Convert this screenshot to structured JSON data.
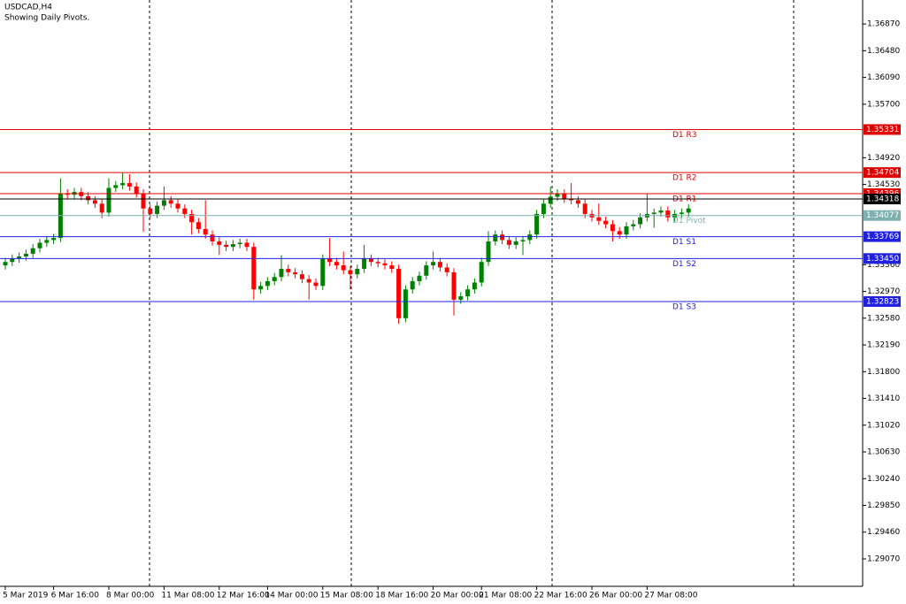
{
  "chart_data": {
    "type": "candlestick",
    "title": "USDCAD,H4",
    "subtitle": "Showing Daily Pivots.",
    "categories": [
      "5 Mar 2019",
      null,
      null,
      null,
      null,
      null,
      null,
      "6 Mar 16:00",
      null,
      null,
      null,
      null,
      null,
      null,
      null,
      "8 Mar 00:00",
      null,
      null,
      null,
      null,
      null,
      null,
      null,
      "11 Mar 08:00",
      null,
      null,
      null,
      null,
      null,
      null,
      null,
      "12 Mar 16:00",
      null,
      null,
      null,
      null,
      null,
      null,
      "14 Mar 00:00",
      null,
      null,
      null,
      null,
      null,
      null,
      null,
      "15 Mar 08:00",
      null,
      null,
      null,
      null,
      null,
      null,
      null,
      "18 Mar 16:00",
      null,
      null,
      null,
      null,
      null,
      null,
      null,
      "20 Mar 00:00",
      null,
      null,
      null,
      null,
      null,
      null,
      "21 Mar 08:00",
      null,
      null,
      null,
      null,
      null,
      null,
      null,
      "22 Mar 16:00",
      null,
      null,
      null,
      null,
      null,
      null,
      null,
      "26 Mar 00:00",
      null,
      null,
      null,
      null,
      null,
      null,
      null,
      "27 Mar 08:00",
      null,
      null,
      null,
      null,
      null,
      null
    ],
    "open": [
      1.3335,
      1.334,
      1.3345,
      1.3348,
      1.3352,
      1.336,
      1.3368,
      1.3372,
      1.3375,
      1.344,
      1.3438,
      1.3442,
      1.3436,
      1.343,
      1.3425,
      1.3412,
      1.3448,
      1.3452,
      1.3455,
      1.345,
      1.344,
      1.3418,
      1.341,
      1.3422,
      1.343,
      1.3425,
      1.3418,
      1.341,
      1.3398,
      1.3388,
      1.338,
      1.337,
      1.3365,
      1.3362,
      1.3366,
      1.3368,
      1.3362,
      1.33,
      1.3305,
      1.3312,
      1.3318,
      1.333,
      1.3325,
      1.3322,
      1.3315,
      1.331,
      1.3305,
      1.3345,
      1.334,
      1.3335,
      1.3328,
      1.3322,
      1.333,
      1.3345,
      1.334,
      1.3338,
      1.3335,
      1.333,
      1.3258,
      1.33,
      1.3312,
      1.332,
      1.3335,
      1.334,
      1.3332,
      1.3325,
      1.3285,
      1.329,
      1.33,
      1.331,
      1.334,
      1.337,
      1.338,
      1.3372,
      1.3365,
      1.337,
      1.3372,
      1.338,
      1.341,
      1.3425,
      1.3435,
      1.344,
      1.3432,
      1.343,
      1.3425,
      1.341,
      1.3405,
      1.34,
      1.3395,
      1.3385,
      1.338,
      1.3392,
      1.3395,
      1.3405,
      1.341,
      1.3412,
      1.3415,
      1.3405,
      1.341,
      1.3412
    ],
    "high": [
      1.3346,
      1.3351,
      1.3354,
      1.3358,
      1.3366,
      1.3374,
      1.3378,
      1.3381,
      1.3462,
      1.3446,
      1.3448,
      1.3448,
      1.3442,
      1.3436,
      1.3431,
      1.3462,
      1.3458,
      1.347,
      1.3468,
      1.3456,
      1.3446,
      1.3424,
      1.3428,
      1.345,
      1.3436,
      1.3431,
      1.3424,
      1.3416,
      1.3404,
      1.343,
      1.3386,
      1.3376,
      1.3371,
      1.3372,
      1.3374,
      1.3374,
      1.3368,
      1.3311,
      1.3318,
      1.3324,
      1.335,
      1.3336,
      1.3331,
      1.3328,
      1.3321,
      1.3316,
      1.3351,
      1.3375,
      1.3346,
      1.3355,
      1.3334,
      1.3336,
      1.3365,
      1.3351,
      1.3346,
      1.3344,
      1.3341,
      1.3336,
      1.3306,
      1.3318,
      1.3326,
      1.3341,
      1.3355,
      1.3346,
      1.3338,
      1.3331,
      1.3296,
      1.3306,
      1.3316,
      1.3346,
      1.3385,
      1.3386,
      1.3386,
      1.3378,
      1.3376,
      1.3378,
      1.3386,
      1.3416,
      1.3431,
      1.345,
      1.3446,
      1.3446,
      1.3455,
      1.3436,
      1.3431,
      1.3416,
      1.3425,
      1.3406,
      1.3401,
      1.3391,
      1.3398,
      1.3401,
      1.3411,
      1.344,
      1.3418,
      1.3421,
      1.3421,
      1.3416,
      1.3418,
      1.3424
    ],
    "low": [
      1.3329,
      1.3334,
      1.3339,
      1.3342,
      1.3346,
      1.3354,
      1.3362,
      1.3366,
      1.3369,
      1.3432,
      1.3432,
      1.343,
      1.3424,
      1.3419,
      1.3404,
      1.3406,
      1.3442,
      1.3446,
      1.3444,
      1.3434,
      1.3384,
      1.3404,
      1.3404,
      1.3416,
      1.3419,
      1.3412,
      1.3404,
      1.338,
      1.3382,
      1.3374,
      1.3364,
      1.335,
      1.3356,
      1.3356,
      1.336,
      1.3356,
      1.3285,
      1.3294,
      1.3299,
      1.3306,
      1.3312,
      1.3319,
      1.3316,
      1.3309,
      1.3285,
      1.3299,
      1.3299,
      1.3334,
      1.3329,
      1.3322,
      1.33,
      1.3316,
      1.3324,
      1.3334,
      1.3332,
      1.3329,
      1.3324,
      1.325,
      1.3252,
      1.3294,
      1.3306,
      1.3314,
      1.3329,
      1.3326,
      1.3319,
      1.3262,
      1.3279,
      1.3284,
      1.3294,
      1.3304,
      1.3334,
      1.3364,
      1.3366,
      1.3359,
      1.3359,
      1.335,
      1.3366,
      1.3374,
      1.3404,
      1.3419,
      1.3429,
      1.3426,
      1.3424,
      1.3419,
      1.3404,
      1.3399,
      1.3394,
      1.3389,
      1.337,
      1.3374,
      1.3374,
      1.3386,
      1.3389,
      1.3399,
      1.339,
      1.3406,
      1.3399,
      1.3399,
      1.3404,
      1.3406
    ],
    "close": [
      1.334,
      1.3345,
      1.3348,
      1.3352,
      1.336,
      1.3368,
      1.3372,
      1.3375,
      1.344,
      1.3438,
      1.3442,
      1.3436,
      1.343,
      1.3425,
      1.3412,
      1.3448,
      1.3452,
      1.3455,
      1.345,
      1.344,
      1.3418,
      1.341,
      1.3422,
      1.343,
      1.3425,
      1.3418,
      1.341,
      1.3398,
      1.3388,
      1.338,
      1.337,
      1.3365,
      1.3362,
      1.3366,
      1.3368,
      1.3362,
      1.33,
      1.3305,
      1.3312,
      1.3318,
      1.333,
      1.3325,
      1.3322,
      1.3315,
      1.331,
      1.3305,
      1.3345,
      1.334,
      1.3335,
      1.3328,
      1.3322,
      1.333,
      1.3345,
      1.334,
      1.3338,
      1.3335,
      1.333,
      1.3258,
      1.33,
      1.3312,
      1.332,
      1.3335,
      1.334,
      1.3332,
      1.3325,
      1.3285,
      1.329,
      1.33,
      1.331,
      1.334,
      1.337,
      1.338,
      1.3372,
      1.3365,
      1.337,
      1.3372,
      1.338,
      1.341,
      1.3425,
      1.3435,
      1.344,
      1.3432,
      1.343,
      1.3425,
      1.341,
      1.3405,
      1.34,
      1.3395,
      1.3385,
      1.338,
      1.3392,
      1.3395,
      1.3405,
      1.341,
      1.3412,
      1.3415,
      1.3405,
      1.341,
      1.3412,
      1.3418
    ],
    "up_color": "#008000",
    "down_color": "#ff0000",
    "ylim": [
      1.2867,
      1.3722
    ],
    "yticks": [
      {
        "value": 1.3687,
        "label": "1.36870"
      },
      {
        "value": 1.3648,
        "label": "1.36480"
      },
      {
        "value": 1.3609,
        "label": "1.36090"
      },
      {
        "value": 1.357,
        "label": "1.35700"
      },
      {
        "value": 1.3492,
        "label": "1.34920"
      },
      {
        "value": 1.3453,
        "label": "1.34530"
      },
      {
        "value": 1.3336,
        "label": "1.33360"
      },
      {
        "value": 1.3297,
        "label": "1.32970"
      },
      {
        "value": 1.3258,
        "label": "1.32580"
      },
      {
        "value": 1.3219,
        "label": "1.32190"
      },
      {
        "value": 1.318,
        "label": "1.31800"
      },
      {
        "value": 1.3141,
        "label": "1.31410"
      },
      {
        "value": 1.3102,
        "label": "1.31020"
      },
      {
        "value": 1.3063,
        "label": "1.30630"
      },
      {
        "value": 1.3024,
        "label": "1.30240"
      },
      {
        "value": 1.2985,
        "label": "1.29850"
      },
      {
        "value": 1.2946,
        "label": "1.29460"
      },
      {
        "value": 1.2907,
        "label": "1.29070"
      }
    ],
    "levels": [
      {
        "name": "D1 R3",
        "value": 1.35331,
        "color": "#e00000"
      },
      {
        "name": "D1 R2",
        "value": 1.34704,
        "color": "#e00000"
      },
      {
        "name": "D1 R1",
        "value": 1.34396,
        "color": "#e00000"
      },
      {
        "name": "D1 Pivot",
        "value": 1.34077,
        "color": "#7fb0b0"
      },
      {
        "name": "D1 S1",
        "value": 1.33769,
        "color": "#2020e0"
      },
      {
        "name": "D1 S2",
        "value": 1.3345,
        "value_label": "1.33450",
        "color": "#2020e0"
      },
      {
        "name": "D1 S3",
        "value": 1.32823,
        "color": "#2020e0"
      }
    ],
    "current_price": 1.34318,
    "current_color": "#000000"
  }
}
